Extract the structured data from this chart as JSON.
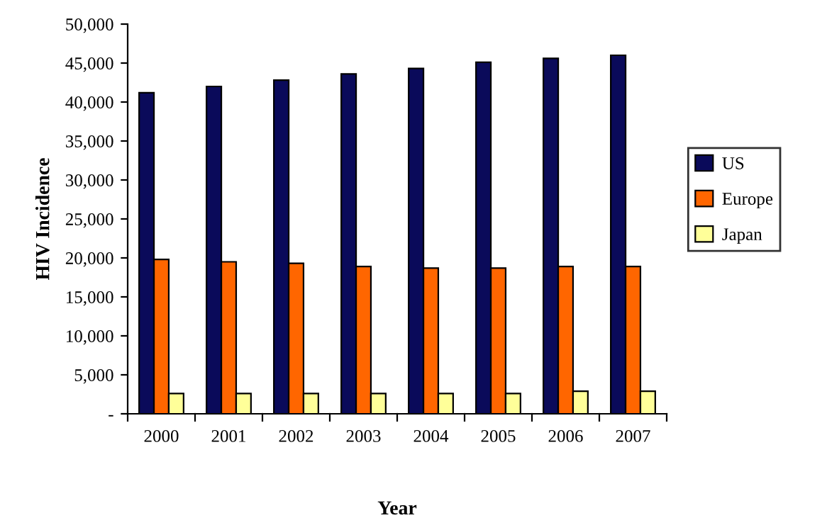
{
  "chart_data": {
    "type": "bar",
    "xlabel": "Year",
    "ylabel": "HIV Incidence",
    "categories": [
      "2000",
      "2001",
      "2002",
      "2003",
      "2004",
      "2005",
      "2006",
      "2007"
    ],
    "series": [
      {
        "name": "US",
        "color": "#0a0a5a",
        "values": [
          41200,
          42000,
          42800,
          43600,
          44300,
          45100,
          45600,
          46000
        ]
      },
      {
        "name": "Europe",
        "color": "#ff6600",
        "values": [
          19800,
          19500,
          19300,
          18900,
          18700,
          18700,
          18900,
          18900
        ]
      },
      {
        "name": "Japan",
        "color": "#ffff99",
        "values": [
          2600,
          2600,
          2600,
          2600,
          2600,
          2600,
          2900,
          2900
        ]
      }
    ],
    "ylim": [
      0,
      50000
    ],
    "yticks": [
      {
        "value": 0,
        "label": "-"
      },
      {
        "value": 5000,
        "label": "5,000"
      },
      {
        "value": 10000,
        "label": "10,000"
      },
      {
        "value": 15000,
        "label": "15,000"
      },
      {
        "value": 20000,
        "label": "20,000"
      },
      {
        "value": 25000,
        "label": "25,000"
      },
      {
        "value": 30000,
        "label": "30,000"
      },
      {
        "value": 35000,
        "label": "35,000"
      },
      {
        "value": 40000,
        "label": "40,000"
      },
      {
        "value": 45000,
        "label": "45,000"
      },
      {
        "value": 50000,
        "label": "50,000"
      }
    ],
    "grid": false,
    "legend": "right"
  }
}
